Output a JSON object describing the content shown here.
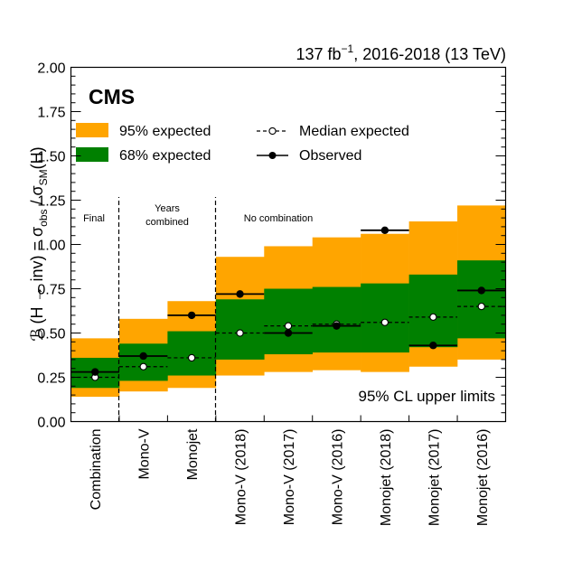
{
  "chart_data": {
    "type": "bar",
    "header": {
      "lumi_prefix": "137 fb",
      "lumi_exponent": "−1",
      "lumi_suffix": ", 2016-2018 (13 TeV)"
    },
    "experiment": "CMS",
    "ylabel": {
      "part1": "ℬ (H → inv) = σ",
      "sub1": "obs",
      "part2": " / σ",
      "sub2": "SM",
      "part3": "(H)"
    },
    "ylim": [
      0,
      2
    ],
    "yticks": [
      "0.00",
      "0.25",
      "0.50",
      "0.75",
      "1.00",
      "1.25",
      "1.50",
      "1.75",
      "2.00"
    ],
    "ytick_values": [
      0,
      0.25,
      0.5,
      0.75,
      1.0,
      1.25,
      1.5,
      1.75,
      2.0
    ],
    "categories": [
      "Combination",
      "Mono-V",
      "Monojet",
      "Mono-V (2018)",
      "Mono-V (2017)",
      "Mono-V (2016)",
      "Monojet (2018)",
      "Monojet (2017)",
      "Monojet (2016)"
    ],
    "series": [
      {
        "name": "Observed",
        "values": [
          0.28,
          0.37,
          0.6,
          0.72,
          0.5,
          0.54,
          1.08,
          0.43,
          0.74
        ]
      },
      {
        "name": "Median expected",
        "values": [
          0.25,
          0.31,
          0.36,
          0.5,
          0.54,
          0.55,
          0.56,
          0.59,
          0.65
        ]
      },
      {
        "name": "68% expected low",
        "values": [
          0.19,
          0.23,
          0.26,
          0.35,
          0.38,
          0.39,
          0.39,
          0.42,
          0.47
        ]
      },
      {
        "name": "68% expected high",
        "values": [
          0.36,
          0.44,
          0.51,
          0.69,
          0.75,
          0.76,
          0.78,
          0.83,
          0.91
        ]
      },
      {
        "name": "95% expected low",
        "values": [
          0.14,
          0.17,
          0.19,
          0.26,
          0.28,
          0.29,
          0.28,
          0.31,
          0.35
        ]
      },
      {
        "name": "95% expected high",
        "values": [
          0.47,
          0.58,
          0.68,
          0.93,
          0.99,
          1.04,
          1.06,
          1.13,
          1.22
        ]
      }
    ],
    "legend": {
      "exp95": "95% expected",
      "exp68": "68% expected",
      "median": "Median expected",
      "observed": "Observed"
    },
    "colors": {
      "band95": "#FFA500",
      "band68": "#008000",
      "observed": "#000000"
    },
    "section_labels": {
      "final": "Final",
      "years_line1": "Years",
      "years_line2": "combined",
      "nocomb": "No combination"
    },
    "annotation": "95% CL upper limits"
  }
}
